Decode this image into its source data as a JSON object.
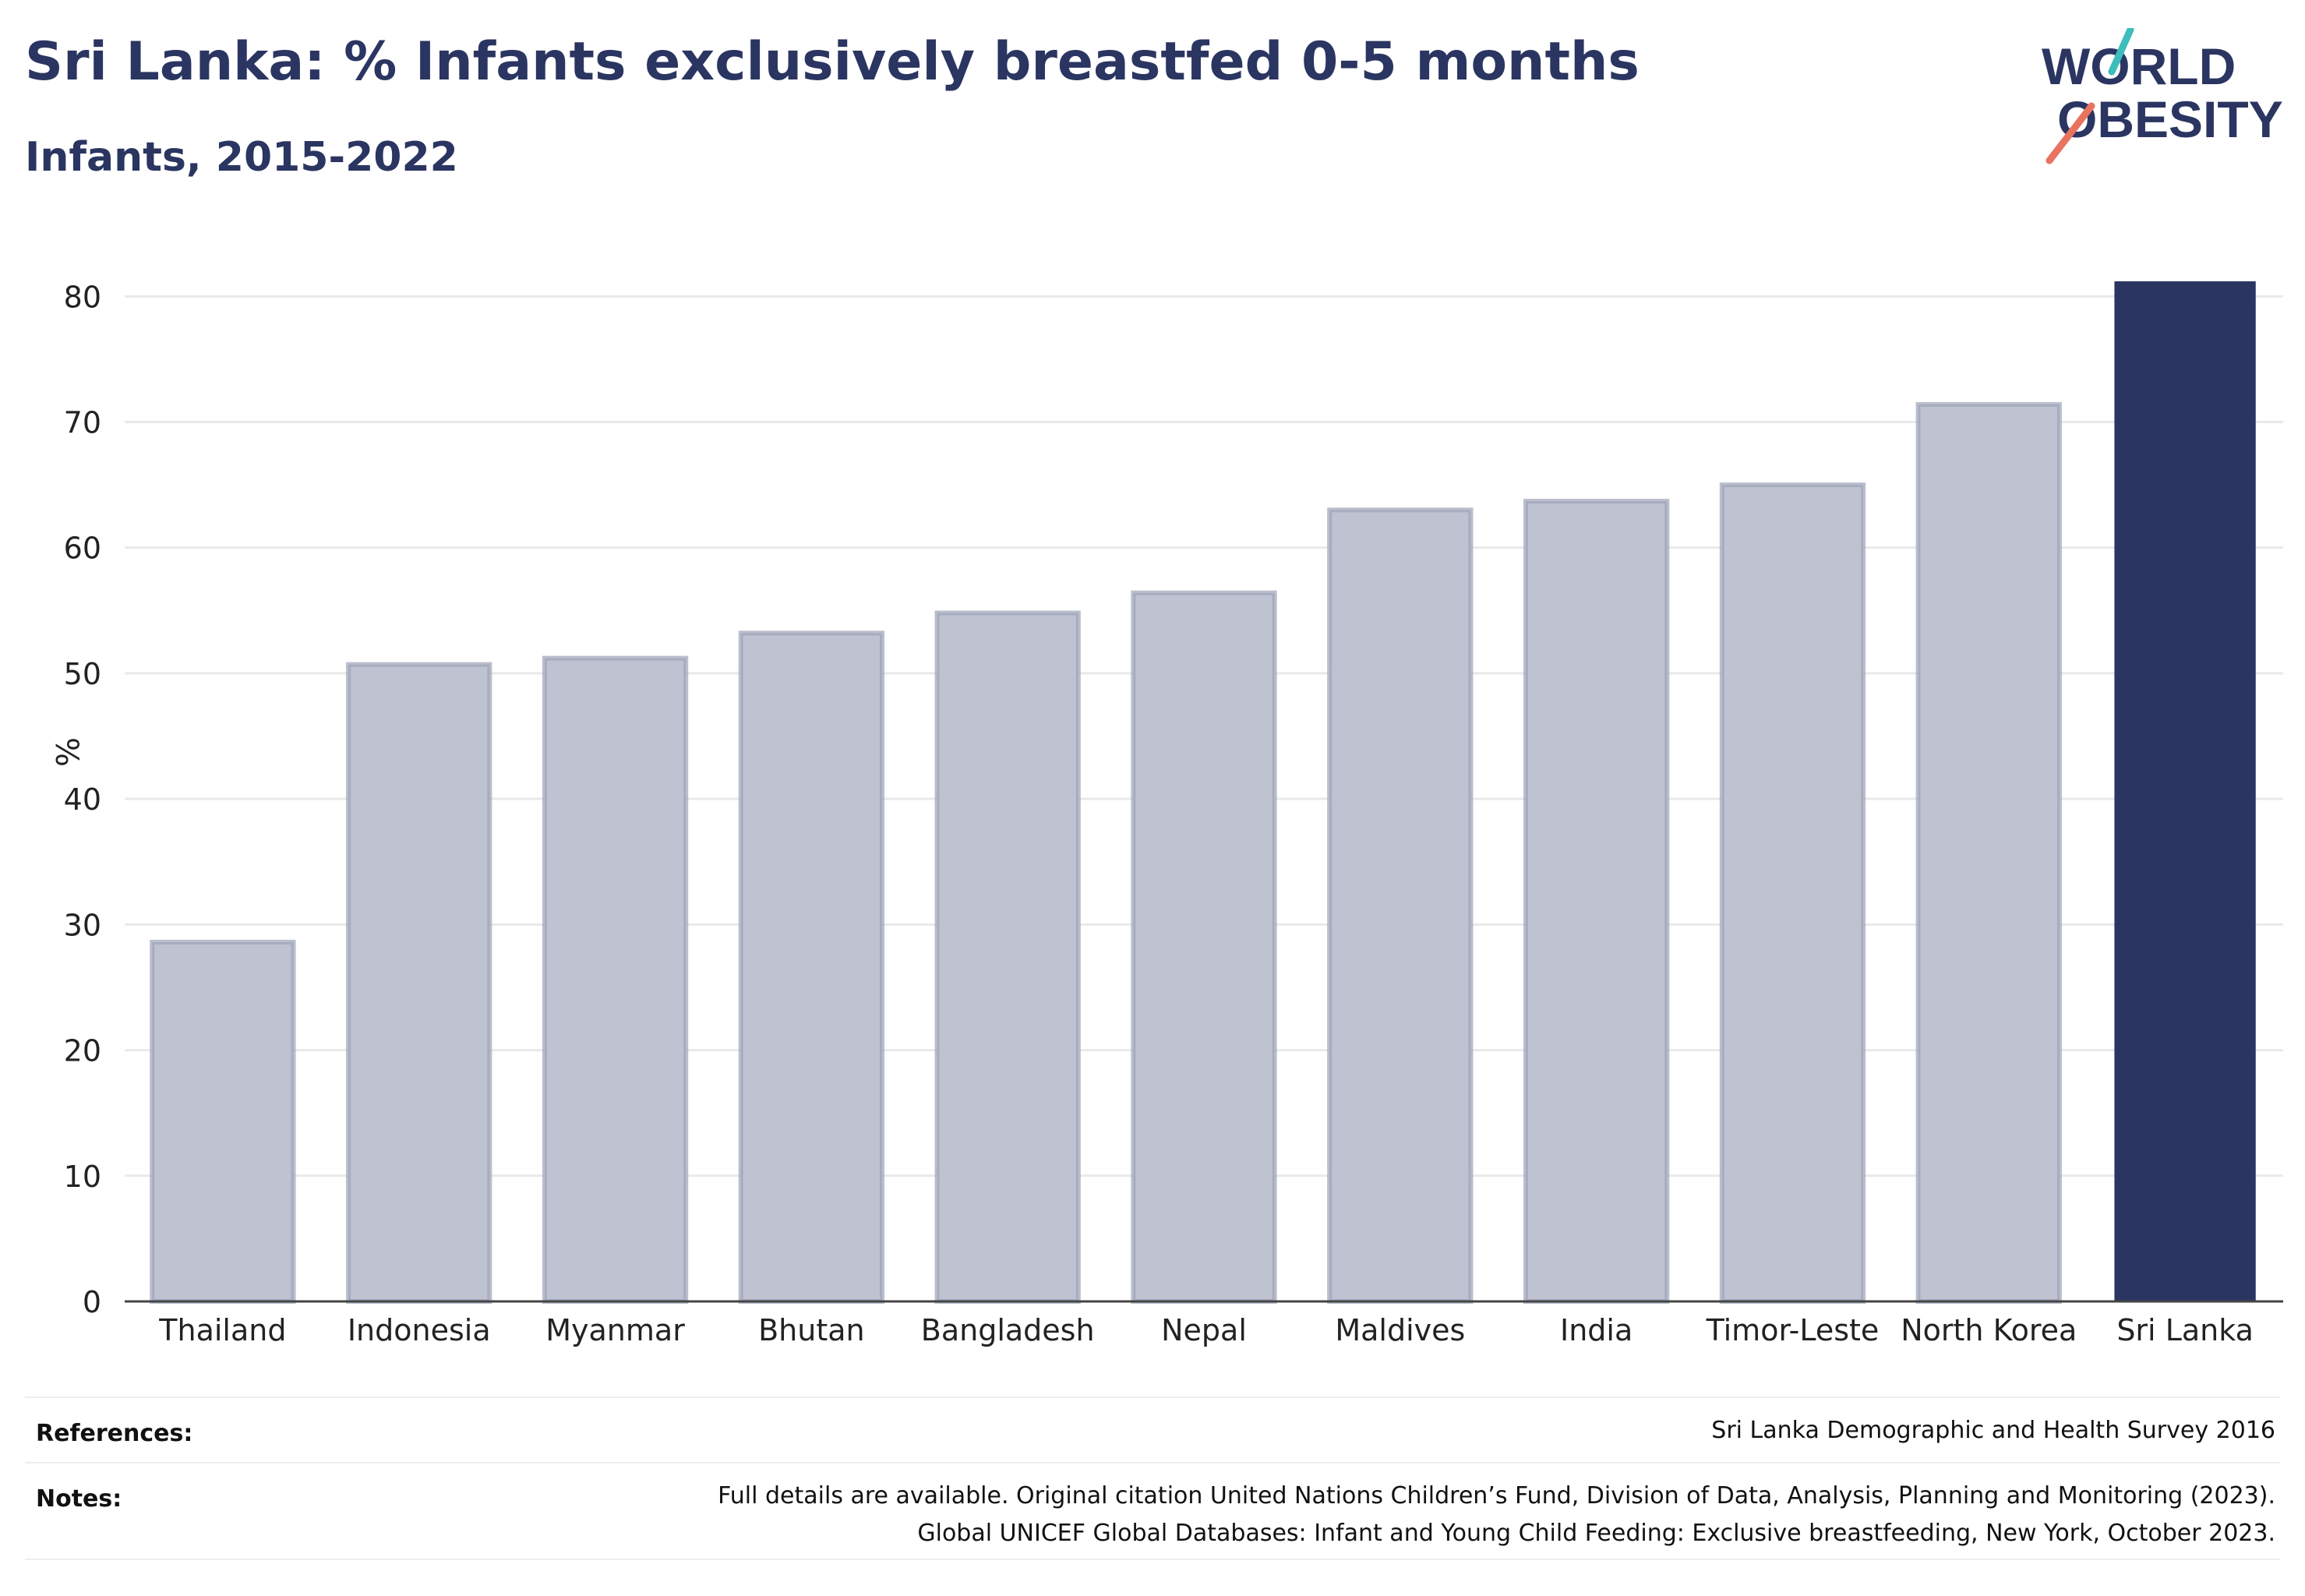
{
  "header": {
    "title": "Sri Lanka: % Infants exclusively breastfed 0-5 months",
    "subtitle": "Infants, 2015-2022"
  },
  "logo": {
    "line1": "WORLD",
    "line2": "OBESITY",
    "colors": {
      "text": "#2b3561",
      "teal": "#3dbdbb",
      "coral": "#e8735f"
    }
  },
  "chart_data": {
    "type": "bar",
    "ylabel": "%",
    "xlabel": "",
    "ylim": [
      0,
      80
    ],
    "yticks": [
      0,
      10,
      20,
      30,
      40,
      50,
      60,
      70,
      80
    ],
    "grid": true,
    "categories": [
      "Thailand",
      "Indonesia",
      "Myanmar",
      "Bhutan",
      "Bangladesh",
      "Nepal",
      "Maldives",
      "India",
      "Timor-Leste",
      "North Korea",
      "Sri Lanka"
    ],
    "values": [
      28.6,
      50.7,
      51.2,
      53.2,
      54.8,
      56.4,
      63.0,
      63.7,
      65.0,
      71.4,
      81.2
    ],
    "highlight": "Sri Lanka",
    "colors": {
      "bar": "#bfc2d0",
      "bar_edge": "#9da2b8",
      "highlight": "#2b3561",
      "grid": "#e9e9e9",
      "axis": "#444444"
    }
  },
  "footer": {
    "references_label": "References:",
    "references_text": "Sri Lanka Demographic and Health Survey 2016",
    "notes_label": "Notes:",
    "notes_line1": "Full details are available. Original citation United Nations Children’s Fund, Division of Data, Analysis, Planning and Monitoring (2023).",
    "notes_line2": "Global UNICEF Global Databases: Infant and Young Child Feeding: Exclusive breastfeeding, New York, October 2023."
  }
}
